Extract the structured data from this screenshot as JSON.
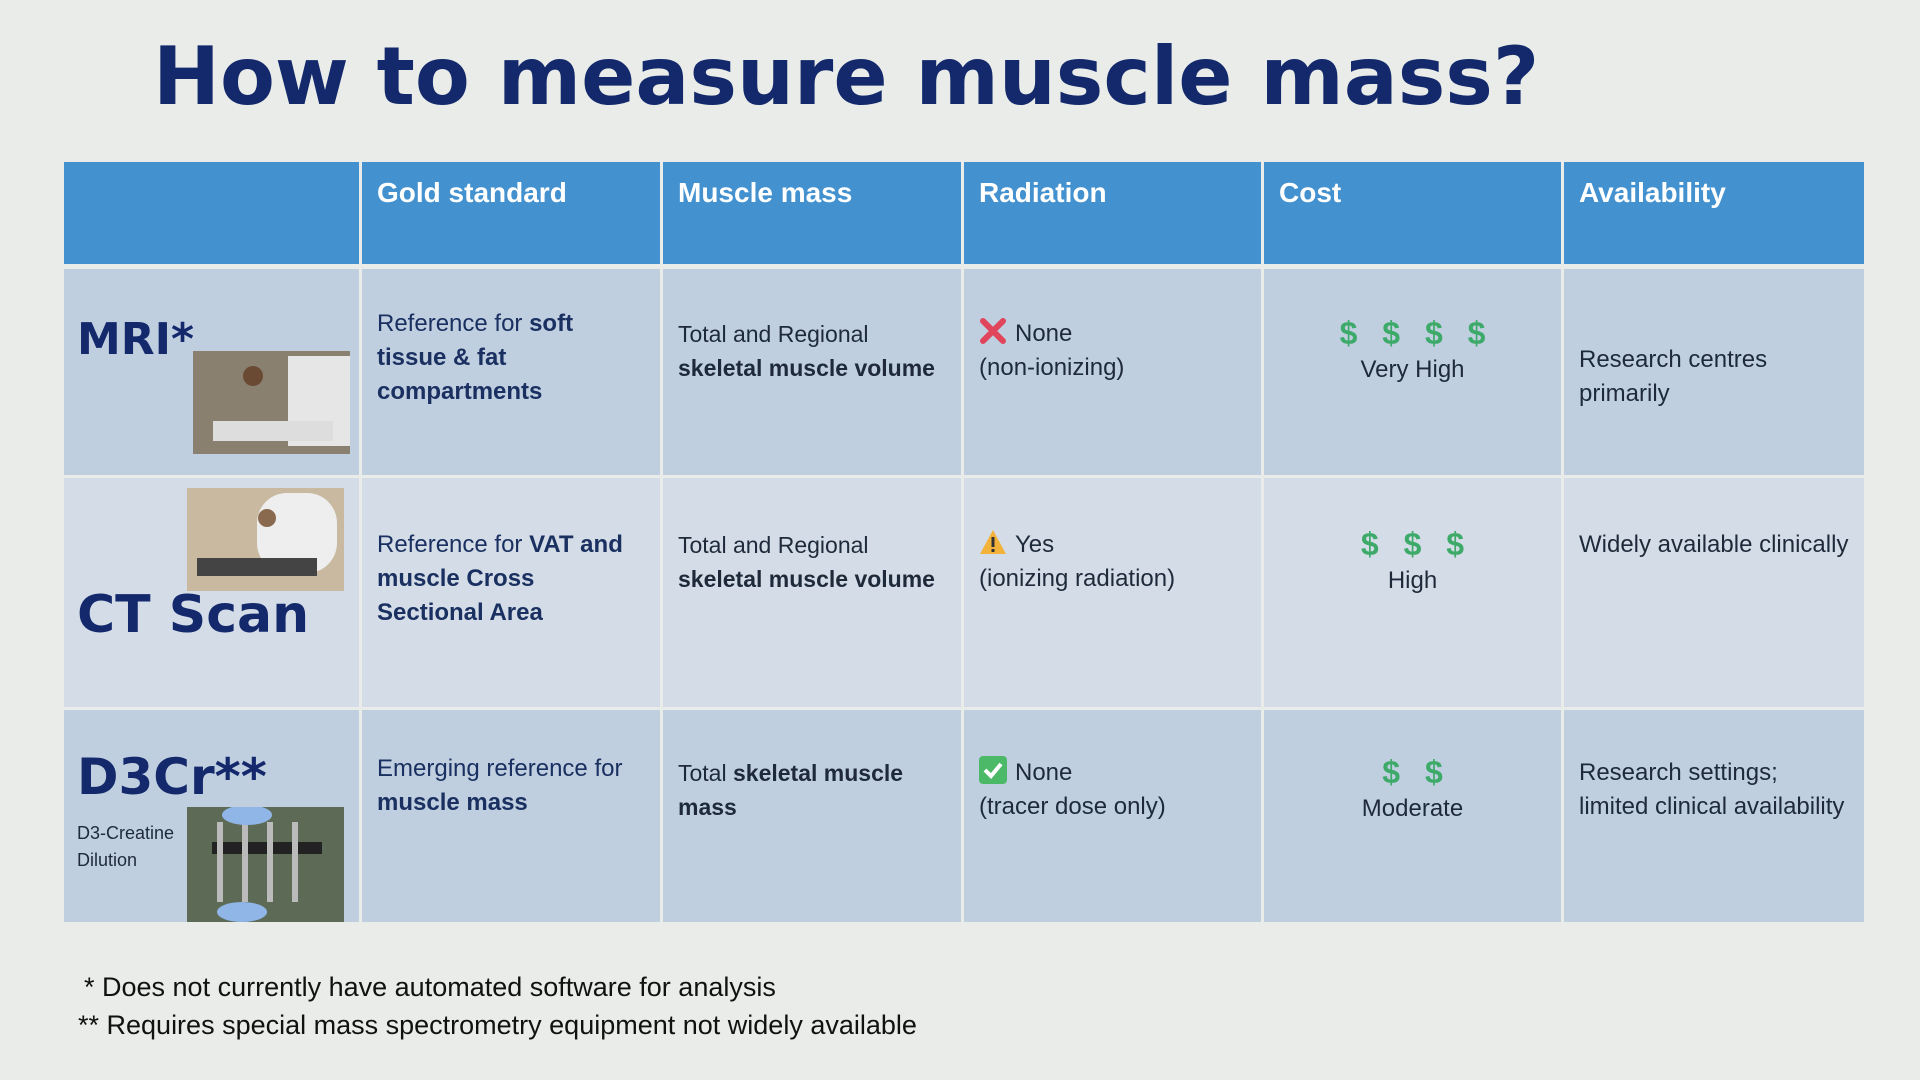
{
  "title": "How to measure muscle mass?",
  "table": {
    "header": [
      "Gold standard",
      "Muscle mass",
      "Radiation",
      "Cost",
      "Availability"
    ],
    "rows": [
      {
        "method": "MRI*",
        "gold": [
          {
            "text": "Reference for ",
            "bold": false
          },
          {
            "text": "soft tissue & fat compartments",
            "bold": true
          }
        ],
        "muscle": [
          {
            "text": "Total and Regional ",
            "bold": false
          },
          {
            "text": "skeletal muscle volume",
            "bold": true
          }
        ],
        "radiation": {
          "icon": "cross",
          "status": "None",
          "detail": "(non-ionizing)"
        },
        "cost": {
          "symbols": "$ $ $ $",
          "level": "Very High"
        },
        "availability": "Research centres primarily"
      },
      {
        "method": "CT Scan",
        "gold": [
          {
            "text": "Reference for ",
            "bold": false
          },
          {
            "text": "VAT and muscle Cross Sectional Area",
            "bold": true
          }
        ],
        "muscle": [
          {
            "text": "Total and Regional ",
            "bold": false
          },
          {
            "text": "skeletal muscle volume",
            "bold": true
          }
        ],
        "radiation": {
          "icon": "warning",
          "status": "Yes",
          "detail": "(ionizing radiation)"
        },
        "cost": {
          "symbols": "$ $ $",
          "level": "High"
        },
        "availability": "Widely available clinically"
      },
      {
        "method": "D3Cr**",
        "method_note": "D3-Creatine Dilution",
        "gold": [
          {
            "text": "Emerging reference for ",
            "bold": false
          },
          {
            "text": "muscle mass",
            "bold": true
          }
        ],
        "muscle": [
          {
            "text": "Total ",
            "bold": false
          },
          {
            "text": "skeletal muscle mass",
            "bold": true
          }
        ],
        "radiation": {
          "icon": "check",
          "status": "None",
          "detail": "(tracer dose only)"
        },
        "cost": {
          "symbols": "$ $",
          "level": "Moderate"
        },
        "availability": "Research settings; limited clinical availability"
      }
    ]
  },
  "footnotes": [
    "* Does not currently have automated software for analysis",
    "** Requires special mass spectrometry equipment not widely available"
  ]
}
